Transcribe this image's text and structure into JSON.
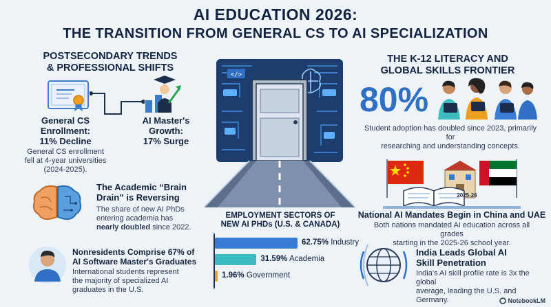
{
  "title": {
    "line1": "AI EDUCATION 2026:",
    "line2": "THE TRANSITION FROM GENERAL CS TO AI SPECIALIZATION"
  },
  "left": {
    "heading_line1": "POSTSECONDARY TRENDS",
    "heading_line2": "& PROFESSIONAL SHIFTS",
    "cs_enrollment": {
      "title_line1": "General CS",
      "title_line2": "Enrollment:",
      "title_line3": "11% Decline",
      "desc_line1": "General CS enrollment",
      "desc_line2": "fell at 4-year universities",
      "desc_line3": "(2024-2025)."
    },
    "ai_master": {
      "title_line1": "AI Master's",
      "title_line2": "Growth:",
      "title_line3": "17% Surge"
    },
    "brain_drain": {
      "title_line1": "The Academic “Brain",
      "title_line2": "Drain” is Reversing",
      "desc_line1": "The share of new AI PhDs",
      "desc_line2": "entering academia has",
      "desc_bold": "nearly doubled",
      "desc_line3_rest": " since 2022."
    },
    "nonresidents": {
      "title_line1": "Nonresidents Comprise 67% of",
      "title_line2": "AI Software Master's Graduates",
      "desc_line1": "International students represent",
      "desc_line2": "the majority of specialized AI",
      "desc_line3": "graduates in the U.S."
    }
  },
  "right": {
    "heading_line1": "THE K-12 LITERACY AND",
    "heading_line2": "GLOBAL SKILLS FRONTIER",
    "adoption": {
      "value": "80%",
      "desc_line1": "Student adoption has doubled since 2023, primarily for",
      "desc_line2": "researching and understanding concepts."
    },
    "mandates": {
      "book_label": "2025-26",
      "title": "National AI Mandates Begin in China and UAE",
      "desc_line1": "Both nations mandated AI education across all grades",
      "desc_line2": "starting in the 2025-26 school year."
    },
    "india": {
      "title_line1": "India Leads Global AI",
      "title_line2": "Skill Penetration",
      "desc_line1": "India's AI skill profile rate is 3x the global",
      "desc_line2": "average, leading the U.S. and Germany."
    }
  },
  "chart_data": {
    "type": "bar",
    "title": "EMPLOYMENT SECTORS OF NEW AI PHDs (U.S. & CANADA)",
    "title_line1": "EMPLOYMENT SECTORS OF",
    "title_line2": "NEW AI PHDs (U.S. & CANADA)",
    "categories": [
      "Industry",
      "Academia",
      "Government"
    ],
    "values": [
      62.75,
      31.59,
      1.96
    ],
    "value_labels": [
      "62.75%",
      "31.59%",
      "1.96%"
    ],
    "colors": [
      "#3a7bd5",
      "#3cbcc0",
      "#f0a020"
    ],
    "orientation": "horizontal"
  },
  "footer": {
    "brand": "NotebookLM"
  },
  "colors": {
    "title": "#13233f",
    "accent_blue": "#2f6fc4",
    "teal": "#3cbcc0",
    "orange": "#f0a020"
  }
}
